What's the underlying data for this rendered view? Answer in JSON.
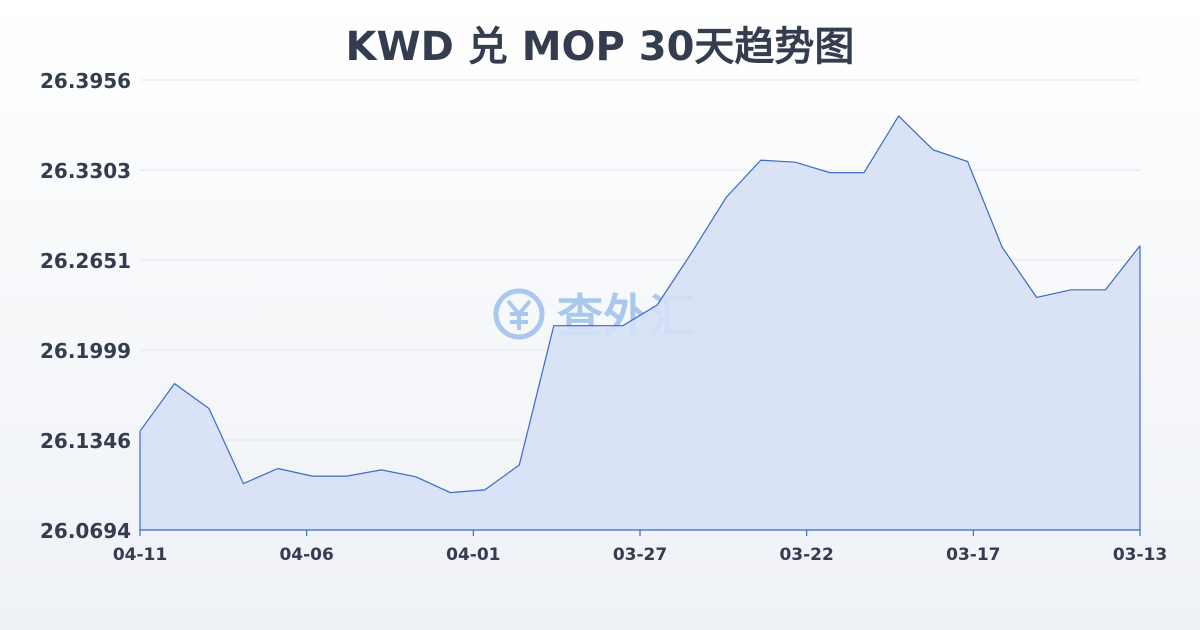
{
  "chart_data": {
    "type": "area",
    "title": "KWD 兑 MOP 30天趋势图",
    "xlabel": "",
    "ylabel": "",
    "y_ticks": [
      "26.3956",
      "26.3303",
      "26.2651",
      "26.1999",
      "26.1346",
      "26.0694"
    ],
    "ylim": [
      26.0694,
      26.3956
    ],
    "x_ticks": [
      "04-11",
      "04-06",
      "04-01",
      "03-27",
      "03-22",
      "03-17",
      "03-13"
    ],
    "grid": true,
    "values": [
      26.141,
      26.1755,
      26.1575,
      26.103,
      26.114,
      26.1085,
      26.1085,
      26.113,
      26.108,
      26.0965,
      26.0985,
      26.1165,
      26.2175,
      26.2175,
      26.2175,
      26.2325,
      26.2705,
      26.3105,
      26.3375,
      26.336,
      26.3285,
      26.3285,
      26.3695,
      26.345,
      26.3365,
      26.2745,
      26.238,
      26.2435,
      26.2435,
      26.2755
    ],
    "colors": {
      "line": "#3a6bc7",
      "fill": "#d6e0f5",
      "grid": "#e3e6ec",
      "text": "#333d4f"
    }
  },
  "watermark": {
    "text": "查外汇",
    "icon": "yen-exchange-icon",
    "color": "#4a90e2"
  }
}
